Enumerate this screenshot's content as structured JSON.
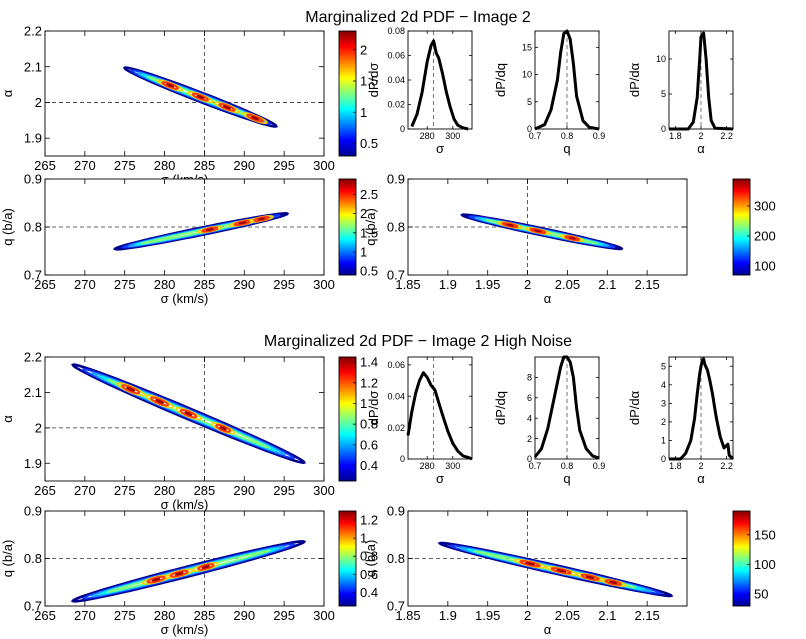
{
  "sections": [
    {
      "title": "Marginalized 2d PDF − Image 2",
      "panels": [
        {
          "type": "contour",
          "xlim": [
            265,
            300
          ],
          "ylim": [
            1.85,
            2.2
          ],
          "xticks": [
            "265",
            "270",
            "275",
            "280",
            "285",
            "290",
            "295",
            "300"
          ],
          "yticks": [
            "1.9",
            "2",
            "2.1",
            "2.2"
          ],
          "xlabel": "σ (km/s)",
          "ylabel": "α",
          "ref": [
            285,
            2.0
          ],
          "center": [
            284.5,
            2.015
          ],
          "slope": -0.0086,
          "halflen": 9.5,
          "halfwid": 0.011,
          "blobs": [
            [
              -0.4,
              0.3
            ],
            [
              0.0,
              0.3
            ],
            [
              0.35,
              0.3
            ],
            [
              0.72,
              0.3
            ]
          ],
          "cbar_ticks": [
            "0.5",
            "1",
            "1.5",
            "2"
          ],
          "cbar_range": [
            0.3,
            2.3
          ]
        },
        {
          "type": "line",
          "xlim": [
            265,
            315
          ],
          "ylim": [
            0,
            0.08
          ],
          "xticks": [
            "280",
            "300"
          ],
          "yticks": [
            "0",
            "0.02",
            "0.04",
            "0.06",
            "0.08"
          ],
          "xlabel": "σ",
          "ylabel": "dP/dσ",
          "ref": 285,
          "x": [
            268,
            272,
            276,
            280,
            283,
            285,
            287,
            289,
            292,
            295,
            298,
            301,
            304,
            308,
            312
          ],
          "y": [
            0.002,
            0.012,
            0.03,
            0.055,
            0.068,
            0.072,
            0.062,
            0.058,
            0.045,
            0.03,
            0.018,
            0.008,
            0.003,
            0.001,
            0.0
          ]
        },
        {
          "type": "line",
          "xlim": [
            0.7,
            0.9
          ],
          "ylim": [
            0,
            18
          ],
          "xticks": [
            "0.7",
            "0.8",
            "0.9"
          ],
          "yticks": [
            "0",
            "5",
            "10",
            "15"
          ],
          "xlabel": "q",
          "ylabel": "dP/dq",
          "ref": 0.8,
          "x": [
            0.7,
            0.73,
            0.75,
            0.77,
            0.78,
            0.79,
            0.8,
            0.81,
            0.82,
            0.83,
            0.85,
            0.87,
            0.9
          ],
          "y": [
            0.0,
            0.8,
            3.5,
            9.0,
            14.0,
            17.5,
            18.0,
            16.5,
            12.0,
            6.0,
            1.5,
            0.3,
            0.0
          ]
        },
        {
          "type": "line",
          "xlim": [
            1.75,
            2.25
          ],
          "ylim": [
            0,
            14
          ],
          "xticks": [
            "1.8",
            "2",
            "2.2"
          ],
          "yticks": [
            "0",
            "5",
            "10"
          ],
          "xlabel": "α",
          "ylabel": "dP/dα",
          "ref": 2.0,
          "x": [
            1.75,
            1.9,
            1.94,
            1.97,
            1.99,
            2.0,
            2.02,
            2.04,
            2.06,
            2.08,
            2.11,
            2.25
          ],
          "y": [
            0.0,
            0.0,
            1.0,
            4.5,
            10.0,
            13.2,
            13.7,
            10.0,
            4.5,
            1.2,
            0.1,
            0.0
          ]
        },
        {
          "type": "contour",
          "xlim": [
            265,
            300
          ],
          "ylim": [
            0.7,
            0.9
          ],
          "xticks": [
            "265",
            "270",
            "275",
            "280",
            "285",
            "290",
            "295",
            "300"
          ],
          "yticks": [
            "0.7",
            "0.8",
            "0.9"
          ],
          "xlabel": "σ (km/s)",
          "ylabel": "q (b/a)",
          "ref": [
            285,
            0.8
          ],
          "center": [
            284.6,
            0.791
          ],
          "slope": 0.0034,
          "halflen": 10.8,
          "halfwid": 0.0065,
          "blobs": [
            [
              0.1,
              0.26
            ],
            [
              0.48,
              0.28
            ],
            [
              0.7,
              0.25
            ]
          ],
          "cbar_ticks": [
            "0.5",
            "1",
            "1.5",
            "2",
            "2.5"
          ],
          "cbar_range": [
            0.4,
            2.9
          ]
        },
        {
          "type": "contour",
          "xlim": [
            1.85,
            2.2
          ],
          "ylim": [
            0.7,
            0.9
          ],
          "xticks": [
            "1.85",
            "1.9",
            "1.95",
            "2",
            "2.05",
            "2.1",
            "2.15"
          ],
          "yticks": [
            "0.7",
            "0.8",
            "0.9"
          ],
          "xlabel": "α",
          "ylabel": "q (b/a)",
          "ref": [
            2.0,
            0.8
          ],
          "center": [
            2.018,
            0.79
          ],
          "slope": -0.35,
          "halflen": 0.1,
          "halfwid": 0.0062,
          "blobs": [
            [
              -0.4,
              0.28
            ],
            [
              -0.05,
              0.28
            ],
            [
              0.38,
              0.26
            ]
          ],
          "cbar_ticks": [
            "100",
            "200",
            "300"
          ],
          "cbar_range": [
            70,
            390
          ]
        }
      ]
    },
    {
      "title": "Marginalized 2d PDF − Image 2 High Noise",
      "panels": [
        {
          "type": "contour",
          "xlim": [
            265,
            300
          ],
          "ylim": [
            1.85,
            2.2
          ],
          "xticks": [
            "265",
            "270",
            "275",
            "280",
            "285",
            "290",
            "295",
            "300"
          ],
          "yticks": [
            "1.9",
            "2",
            "2.1",
            "2.2"
          ],
          "xlabel": "σ (km/s)",
          "ylabel": "α",
          "ref": [
            285,
            2.0
          ],
          "center": [
            283.0,
            2.04
          ],
          "slope": -0.0095,
          "halflen": 14.5,
          "halfwid": 0.013,
          "blobs": [
            [
              -0.5,
              0.22
            ],
            [
              -0.25,
              0.22
            ],
            [
              0.0,
              0.2
            ],
            [
              0.3,
              0.18
            ]
          ],
          "cbar_ticks": [
            "0.4",
            "0.6",
            "0.8",
            "1",
            "1.2",
            "1.4"
          ],
          "cbar_range": [
            0.25,
            1.45
          ]
        },
        {
          "type": "line",
          "xlim": [
            265,
            315
          ],
          "ylim": [
            0,
            0.065
          ],
          "xticks": [
            "280",
            "300"
          ],
          "yticks": [
            "0",
            "0.02",
            "0.04",
            "0.06"
          ],
          "xlabel": "σ",
          "ylabel": "dP/dσ",
          "ref": 285,
          "x": [
            265,
            268,
            271,
            274,
            277,
            280,
            283,
            286,
            289,
            292,
            296,
            300,
            304,
            308,
            312,
            315
          ],
          "y": [
            0.015,
            0.03,
            0.042,
            0.05,
            0.055,
            0.052,
            0.047,
            0.044,
            0.036,
            0.028,
            0.018,
            0.01,
            0.005,
            0.002,
            0.001,
            0.0
          ]
        },
        {
          "type": "line",
          "xlim": [
            0.7,
            0.9
          ],
          "ylim": [
            0,
            10
          ],
          "xticks": [
            "0.7",
            "0.8",
            "0.9"
          ],
          "yticks": [
            "0",
            "2",
            "4",
            "6",
            "8"
          ],
          "xlabel": "q",
          "ylabel": "dP/dq",
          "ref": 0.8,
          "x": [
            0.7,
            0.72,
            0.74,
            0.76,
            0.78,
            0.79,
            0.8,
            0.81,
            0.82,
            0.83,
            0.84,
            0.86,
            0.88,
            0.9
          ],
          "y": [
            0.2,
            1.0,
            3.0,
            6.0,
            9.0,
            10.0,
            10.0,
            9.5,
            8.0,
            5.0,
            2.8,
            1.0,
            0.3,
            0.1
          ]
        },
        {
          "type": "line",
          "xlim": [
            1.75,
            2.25
          ],
          "ylim": [
            0,
            5.5
          ],
          "xticks": [
            "1.8",
            "2",
            "2.2"
          ],
          "yticks": [
            "0",
            "1",
            "2",
            "3",
            "4",
            "5"
          ],
          "xlabel": "α",
          "ylabel": "dP/dα",
          "ref": 2.0,
          "x": [
            1.75,
            1.84,
            1.88,
            1.92,
            1.95,
            1.97,
            1.99,
            2.0,
            2.01,
            2.02,
            2.03,
            2.05,
            2.07,
            2.09,
            2.12,
            2.15,
            2.18,
            2.21,
            2.22,
            2.25
          ],
          "y": [
            0.0,
            0.0,
            0.3,
            1.0,
            2.2,
            3.5,
            4.6,
            5.0,
            5.3,
            5.4,
            5.1,
            4.8,
            4.2,
            3.5,
            2.2,
            1.2,
            0.6,
            0.8,
            0.2,
            0.0
          ]
        },
        {
          "type": "contour",
          "xlim": [
            265,
            300
          ],
          "ylim": [
            0.7,
            0.9
          ],
          "xticks": [
            "265",
            "270",
            "275",
            "280",
            "285",
            "290",
            "295",
            "300"
          ],
          "yticks": [
            "0.7",
            "0.8",
            "0.9"
          ],
          "xlabel": "σ (km/s)",
          "ylabel": "q (b/a)",
          "ref": [
            285,
            0.8
          ],
          "center": [
            283.0,
            0.773
          ],
          "slope": 0.0043,
          "halflen": 14.5,
          "halfwid": 0.009,
          "blobs": [
            [
              -0.28,
              0.22
            ],
            [
              -0.08,
              0.22
            ],
            [
              0.15,
              0.2
            ]
          ],
          "cbar_ticks": [
            "0.4",
            "0.6",
            "0.8",
            "1",
            "1.2"
          ],
          "cbar_range": [
            0.25,
            1.3
          ]
        },
        {
          "type": "contour",
          "xlim": [
            1.85,
            2.2
          ],
          "ylim": [
            0.7,
            0.9
          ],
          "xticks": [
            "1.85",
            "1.9",
            "1.95",
            "2",
            "2.05",
            "2.1",
            "2.15"
          ],
          "yticks": [
            "0.7",
            "0.8",
            "0.9"
          ],
          "xlabel": "α",
          "ylabel": "q (b/a)",
          "ref": [
            2.0,
            0.8
          ],
          "center": [
            2.035,
            0.777
          ],
          "slope": -0.38,
          "halflen": 0.145,
          "halfwid": 0.0075,
          "blobs": [
            [
              -0.22,
              0.25
            ],
            [
              0.05,
              0.25
            ],
            [
              0.3,
              0.22
            ],
            [
              0.5,
              0.2
            ]
          ],
          "cbar_ticks": [
            "50",
            "100",
            "150"
          ],
          "cbar_range": [
            30,
            190
          ]
        }
      ]
    }
  ]
}
